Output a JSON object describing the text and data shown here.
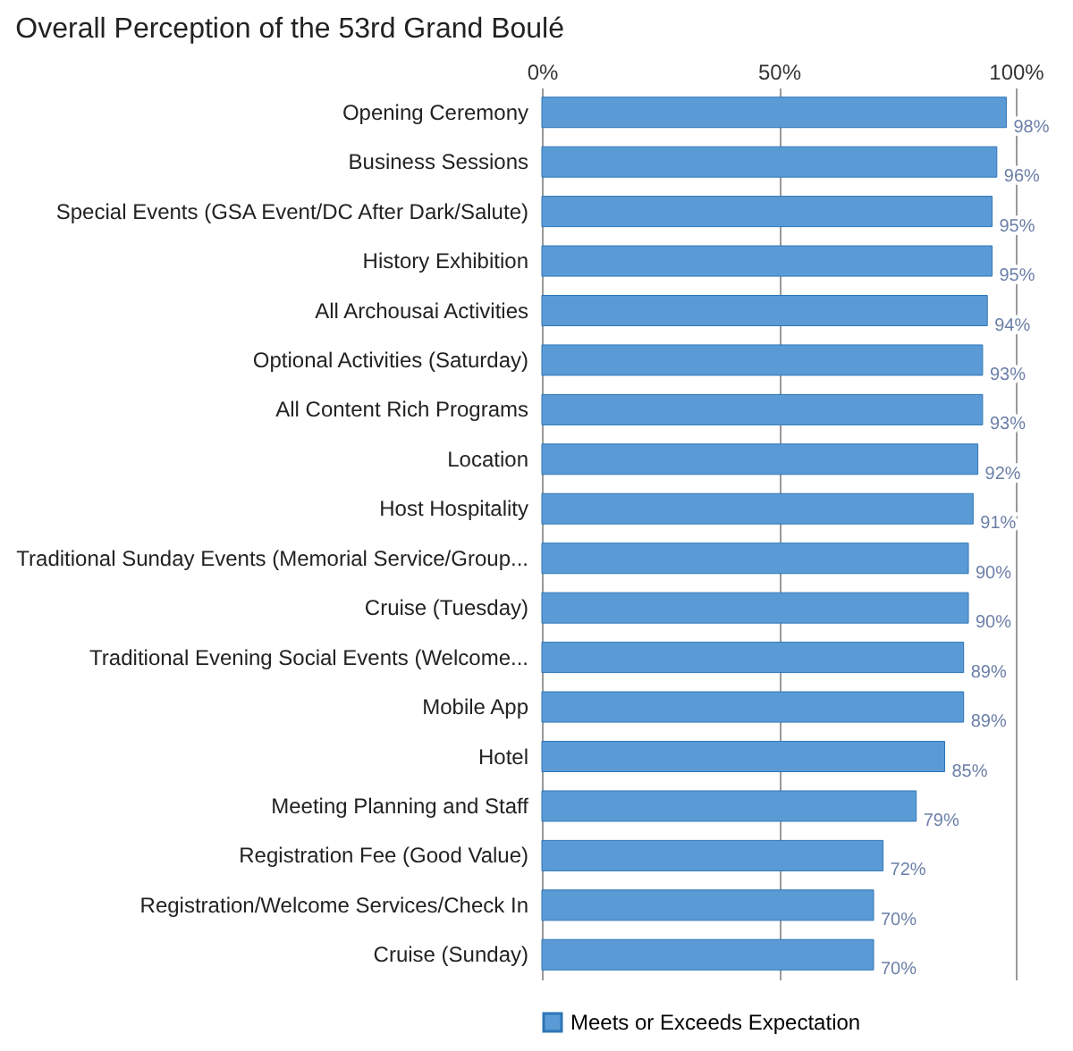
{
  "chart_data": {
    "type": "bar",
    "orientation": "horizontal",
    "title": "Overall Perception of the 53rd Grand Boulé",
    "categories": [
      "Opening Ceremony",
      "Business Sessions",
      "Special Events (GSA Event/DC After Dark/Salute)",
      "History Exhibition",
      "All Archousai Activities",
      "Optional Activities (Saturday)",
      "All Content Rich Programs",
      "Location",
      "Host Hospitality",
      "Traditional Sunday Events (Memorial Service/Group...",
      "Cruise (Tuesday)",
      "Traditional Evening Social Events (Welcome...",
      "Mobile App",
      "Hotel",
      "Meeting Planning and Staff",
      "Registration Fee (Good Value)",
      "Registration/Welcome Services/Check In",
      "Cruise (Sunday)"
    ],
    "series": [
      {
        "name": "Meets or Exceeds Expectation",
        "color": "#5b9bd5",
        "values": [
          98,
          96,
          95,
          95,
          94,
          93,
          93,
          92,
          91,
          90,
          90,
          89,
          89,
          85,
          79,
          72,
          70,
          70
        ],
        "value_labels": [
          "98%",
          "96%",
          "95%",
          "95%",
          "94%",
          "93%",
          "93%",
          "92%",
          "91%",
          "90%",
          "90%",
          "89%",
          "89%",
          "85%",
          "79%",
          "72%",
          "70%",
          "70%"
        ]
      }
    ],
    "xlim": [
      0,
      100
    ],
    "xticks": [
      {
        "value": 0,
        "label": "0%"
      },
      {
        "value": 50,
        "label": "50%"
      },
      {
        "value": 100,
        "label": "100%"
      }
    ],
    "grid": "x",
    "legend": "bottom left"
  }
}
